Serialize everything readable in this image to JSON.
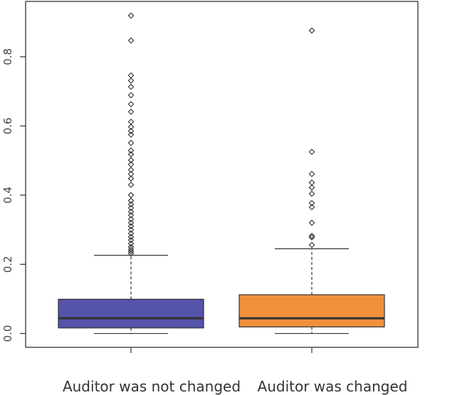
{
  "chart_data": {
    "type": "box",
    "title": "",
    "xlabel": "",
    "ylabel": "",
    "ylim": [
      -0.04,
      0.96
    ],
    "yticks": [
      0.0,
      0.2,
      0.4,
      0.6,
      0.8
    ],
    "ytick_labels": [
      "0.0",
      "0.2",
      "0.4",
      "0.6",
      "0.8"
    ],
    "grid": false,
    "legend": "none",
    "groups": [
      {
        "label": "Auditor was not changed",
        "color": "#5653aa",
        "whisker_low": 0.0,
        "q1": 0.016,
        "median": 0.044,
        "q3": 0.099,
        "whisker_high": 0.226,
        "outliers": [
          0.919,
          0.847,
          0.746,
          0.731,
          0.713,
          0.689,
          0.663,
          0.641,
          0.612,
          0.597,
          0.585,
          0.575,
          0.551,
          0.529,
          0.518,
          0.501,
          0.489,
          0.473,
          0.461,
          0.448,
          0.43,
          0.4,
          0.384,
          0.373,
          0.363,
          0.352,
          0.342,
          0.33,
          0.32,
          0.31,
          0.3,
          0.289,
          0.279,
          0.27,
          0.26,
          0.25,
          0.243,
          0.237,
          0.231
        ]
      },
      {
        "label": "Auditor was changed",
        "color": "#f1903b",
        "whisker_low": 0.0,
        "q1": 0.019,
        "median": 0.044,
        "q3": 0.112,
        "whisker_high": 0.245,
        "outliers": [
          0.876,
          0.525,
          0.461,
          0.436,
          0.422,
          0.404,
          0.377,
          0.365,
          0.32,
          0.282,
          0.278,
          0.256
        ]
      }
    ]
  }
}
